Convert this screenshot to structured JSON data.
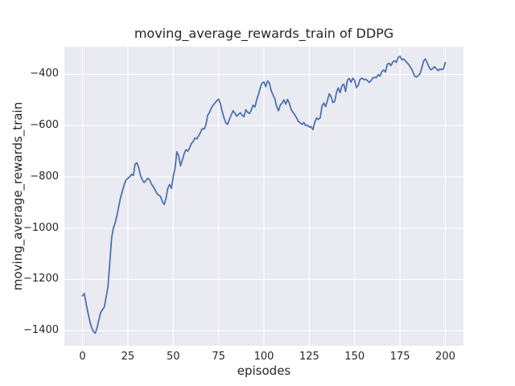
{
  "figure": {
    "title": "moving_average_rewards_train of DDPG"
  },
  "chart_data": {
    "type": "line",
    "title": "moving_average_rewards_train of DDPG",
    "xlabel": "episodes",
    "ylabel": "moving_average_rewards_train",
    "legend_position": "none",
    "grid": true,
    "x_start": 0,
    "x_step": 1,
    "x": "episodes 0..200",
    "values": [
      -1264,
      -1255,
      -1295,
      -1330,
      -1362,
      -1388,
      -1403,
      -1410,
      -1390,
      -1358,
      -1330,
      -1318,
      -1308,
      -1270,
      -1230,
      -1140,
      -1040,
      -1000,
      -980,
      -950,
      -914,
      -880,
      -855,
      -830,
      -812,
      -806,
      -800,
      -790,
      -795,
      -750,
      -745,
      -765,
      -795,
      -812,
      -822,
      -814,
      -805,
      -812,
      -828,
      -838,
      -851,
      -865,
      -871,
      -877,
      -896,
      -908,
      -885,
      -845,
      -830,
      -845,
      -799,
      -767,
      -702,
      -718,
      -757,
      -735,
      -710,
      -694,
      -700,
      -688,
      -670,
      -662,
      -648,
      -652,
      -640,
      -627,
      -612,
      -614,
      -598,
      -560,
      -548,
      -532,
      -520,
      -512,
      -503,
      -497,
      -515,
      -545,
      -570,
      -590,
      -595,
      -575,
      -558,
      -542,
      -552,
      -563,
      -556,
      -550,
      -560,
      -565,
      -538,
      -548,
      -553,
      -540,
      -520,
      -528,
      -500,
      -478,
      -452,
      -434,
      -430,
      -448,
      -426,
      -434,
      -464,
      -480,
      -495,
      -525,
      -542,
      -520,
      -512,
      -500,
      -516,
      -498,
      -512,
      -537,
      -548,
      -558,
      -570,
      -584,
      -589,
      -596,
      -588,
      -600,
      -598,
      -606,
      -604,
      -616,
      -588,
      -570,
      -576,
      -570,
      -524,
      -512,
      -526,
      -502,
      -476,
      -487,
      -510,
      -506,
      -470,
      -453,
      -472,
      -444,
      -438,
      -467,
      -423,
      -416,
      -431,
      -415,
      -424,
      -452,
      -443,
      -419,
      -415,
      -421,
      -419,
      -424,
      -431,
      -425,
      -414,
      -412,
      -413,
      -401,
      -407,
      -389,
      -383,
      -391,
      -361,
      -357,
      -366,
      -352,
      -347,
      -353,
      -334,
      -330,
      -343,
      -340,
      -348,
      -355,
      -364,
      -375,
      -388,
      -406,
      -411,
      -405,
      -398,
      -375,
      -348,
      -340,
      -355,
      -372,
      -382,
      -378,
      -370,
      -378,
      -386,
      -379,
      -382,
      -378,
      -354
    ],
    "xlim": [
      -10,
      210
    ],
    "ylim": [
      -1459,
      -292
    ],
    "xticks": [
      0,
      25,
      50,
      75,
      100,
      125,
      150,
      175,
      200
    ],
    "yticks": [
      -400,
      -600,
      -800,
      -1000,
      -1200,
      -1400
    ],
    "line_color": "#4c72b0",
    "axes_background": "#eaeaf2",
    "grid_color": "#ffffff",
    "text_color": "#262626",
    "figure_background": "#ffffff"
  }
}
